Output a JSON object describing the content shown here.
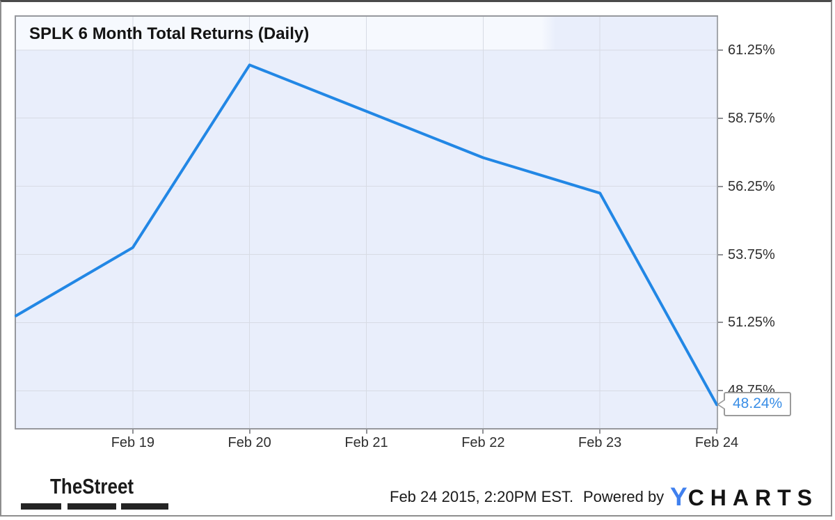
{
  "chart": {
    "title": "SPLK 6 Month Total Returns (Daily)"
  },
  "chart_data": {
    "type": "line",
    "title": "SPLK 6 Month Total Returns (Daily)",
    "xlim": [
      0,
      6
    ],
    "ylim": [
      47.38,
      62.47
    ],
    "grid": true,
    "legend": "none",
    "y_axis_side": "right",
    "x_ticks": [
      {
        "x": 1,
        "label": "Feb 19"
      },
      {
        "x": 2,
        "label": "Feb 20"
      },
      {
        "x": 3,
        "label": "Feb 21"
      },
      {
        "x": 4,
        "label": "Feb 22"
      },
      {
        "x": 5,
        "label": "Feb 23"
      },
      {
        "x": 6,
        "label": "Feb 24"
      }
    ],
    "y_ticks": [
      {
        "v": 61.25,
        "label": "61.25%"
      },
      {
        "v": 58.75,
        "label": "58.75%"
      },
      {
        "v": 56.25,
        "label": "56.25%"
      },
      {
        "v": 53.75,
        "label": "53.75%"
      },
      {
        "v": 51.25,
        "label": "51.25%"
      },
      {
        "v": 48.75,
        "label": "48.75%"
      }
    ],
    "series": [
      {
        "name": "SPLK",
        "color": "#2287e5",
        "points": [
          {
            "x": 0,
            "v": 51.5
          },
          {
            "x": 1,
            "v": 54.0
          },
          {
            "x": 2,
            "v": 60.7
          },
          {
            "x": 3,
            "v": 59.0
          },
          {
            "x": 4,
            "v": 57.3
          },
          {
            "x": 5,
            "v": 56.0
          },
          {
            "x": 6,
            "v": 48.24
          }
        ]
      }
    ],
    "annotation": {
      "x": 6,
      "v": 48.24,
      "label": "48.24%"
    }
  },
  "footer": {
    "brand": "TheStreet",
    "timestamp": "Feb 24 2015, 2:20PM EST.",
    "powered_by": "Powered by",
    "ycharts_y": "Y",
    "ycharts_charts": "CHARTS"
  },
  "colors": {
    "line": "#2287e5",
    "grid": "#d7dbe4",
    "plot_bg": "#e9eefb",
    "title_band_bg": "#f6f9fe",
    "chart_border": "#96989d",
    "tick": "#8f9094",
    "axis_text": "#2e2e2e",
    "callout_text": "#3a8ee6",
    "callout_border": "#9b9b9b",
    "ycharts_blue": "#4080ee",
    "frame_border": "#8e8e8e"
  }
}
